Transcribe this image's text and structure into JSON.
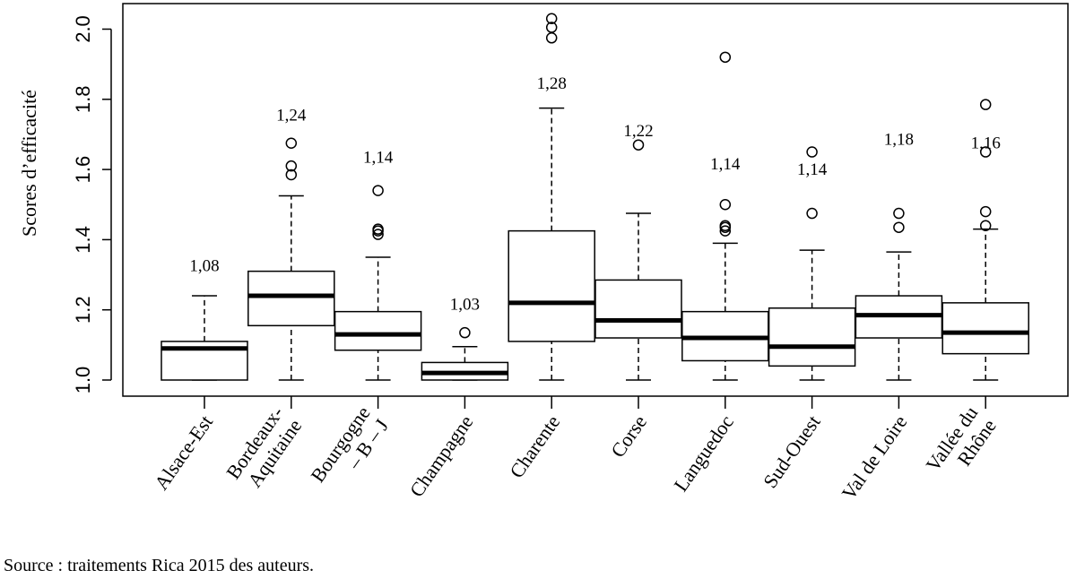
{
  "chart_data": {
    "type": "boxplot",
    "ylabel": "Scores d’efficacité",
    "ylim": [
      0.98,
      2.06
    ],
    "yticks": [
      1.0,
      1.2,
      1.4,
      1.6,
      1.8,
      2.0
    ],
    "ytick_labels": [
      "1.0",
      "1.2",
      "1.4",
      "1.6",
      "1.8",
      "2.0"
    ],
    "categories": [
      {
        "label": [
          "Alsace-Est"
        ],
        "q1": 1.0,
        "median": 1.09,
        "q3": 1.11,
        "whisker_low": 1.0,
        "whisker_high": 1.24,
        "outliers": [],
        "mean_label": "1,08",
        "mean_label_y": 1.31
      },
      {
        "label": [
          "Bordeaux-",
          "Aquitaine"
        ],
        "q1": 1.155,
        "median": 1.24,
        "q3": 1.31,
        "whisker_low": 1.0,
        "whisker_high": 1.525,
        "outliers": [
          1.585,
          1.61,
          1.675
        ],
        "mean_label": "1,24",
        "mean_label_y": 1.74
      },
      {
        "label": [
          "Bourgogne",
          "– B – J"
        ],
        "q1": 1.085,
        "median": 1.13,
        "q3": 1.195,
        "whisker_low": 1.0,
        "whisker_high": 1.35,
        "outliers": [
          1.415,
          1.425,
          1.43,
          1.54
        ],
        "mean_label": "1,14",
        "mean_label_y": 1.62
      },
      {
        "label": [
          "Champagne"
        ],
        "q1": 1.0,
        "median": 1.02,
        "q3": 1.05,
        "whisker_low": 1.0,
        "whisker_high": 1.095,
        "outliers": [
          1.135
        ],
        "mean_label": "1,03",
        "mean_label_y": 1.2
      },
      {
        "label": [
          "Charente"
        ],
        "q1": 1.11,
        "median": 1.22,
        "q3": 1.425,
        "whisker_low": 1.0,
        "whisker_high": 1.775,
        "outliers": [
          1.975,
          2.005,
          2.03
        ],
        "mean_label": "1,28",
        "mean_label_y": 1.83
      },
      {
        "label": [
          "Corse"
        ],
        "q1": 1.12,
        "median": 1.17,
        "q3": 1.285,
        "whisker_low": 1.0,
        "whisker_high": 1.475,
        "outliers": [
          1.67
        ],
        "mean_label": "1,22",
        "mean_label_y": 1.695
      },
      {
        "label": [
          "Languedoc"
        ],
        "q1": 1.055,
        "median": 1.12,
        "q3": 1.195,
        "whisker_low": 1.0,
        "whisker_high": 1.39,
        "outliers": [
          1.425,
          1.435,
          1.44,
          1.5,
          1.92
        ],
        "mean_label": "1,14",
        "mean_label_y": 1.6
      },
      {
        "label": [
          "Sud-Ouest"
        ],
        "q1": 1.04,
        "median": 1.095,
        "q3": 1.205,
        "whisker_low": 1.0,
        "whisker_high": 1.37,
        "outliers": [
          1.475,
          1.65
        ],
        "mean_label": "1,14",
        "mean_label_y": 1.585
      },
      {
        "label": [
          "Val de Loire"
        ],
        "q1": 1.12,
        "median": 1.185,
        "q3": 1.24,
        "whisker_low": 1.0,
        "whisker_high": 1.365,
        "outliers": [
          1.435,
          1.475
        ],
        "mean_label": "1,18",
        "mean_label_y": 1.67
      },
      {
        "label": [
          "Vallée du",
          "Rhône"
        ],
        "q1": 1.075,
        "median": 1.135,
        "q3": 1.22,
        "whisker_low": 1.0,
        "whisker_high": 1.43,
        "outliers": [
          1.44,
          1.48,
          1.65,
          1.785
        ],
        "mean_label": "1,16",
        "mean_label_y": 1.66
      }
    ]
  },
  "source": "Source : traitements Rica 2015 des auteurs."
}
